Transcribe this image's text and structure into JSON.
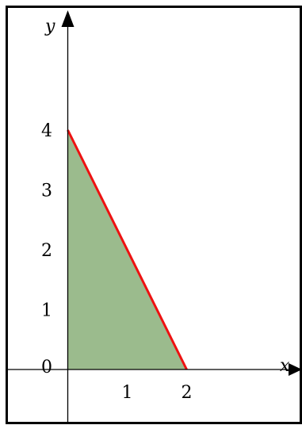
{
  "figure": {
    "x_axis_label": "x",
    "y_axis_label": "y",
    "origin_label": "0",
    "x_ticks": [
      "1",
      "2"
    ],
    "y_ticks": [
      "1",
      "2",
      "3",
      "4"
    ],
    "colors": {
      "region_fill": "#9bbb8d",
      "boundary_line": "#ee1111",
      "axes": "#000000",
      "frame": "#000000"
    },
    "region_vertices": [
      [
        0,
        0
      ],
      [
        2,
        0
      ],
      [
        0,
        4
      ]
    ],
    "boundary_segment": [
      [
        0,
        4
      ],
      [
        2,
        0
      ]
    ]
  }
}
